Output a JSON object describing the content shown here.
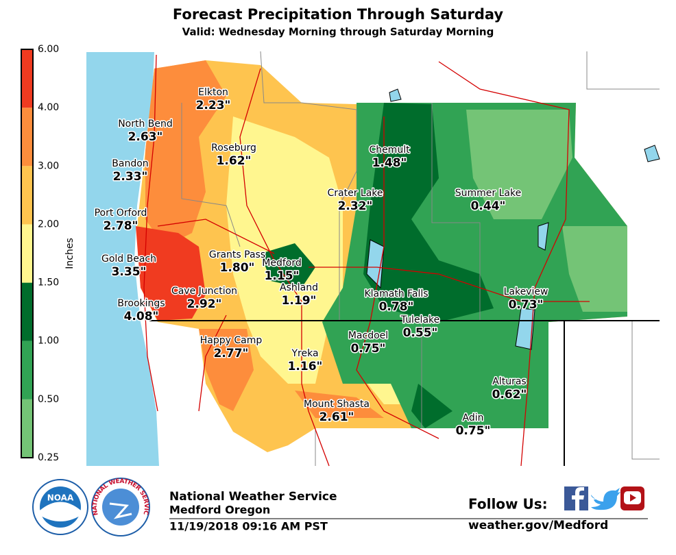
{
  "header": {
    "title": "Forecast Precipitation Through Saturday",
    "subtitle": "Valid: Wednesday Morning through Saturday Morning"
  },
  "legend": {
    "label": "Inches",
    "ticks": [
      "0.25",
      "0.50",
      "1.00",
      "1.50",
      "2.00",
      "3.00",
      "4.00",
      "6.00"
    ],
    "colors": [
      "#74c476",
      "#31a354",
      "#006d2c",
      "#fff68f",
      "#fec44f",
      "#fd8d3c",
      "#f03b20"
    ]
  },
  "locations": [
    {
      "name": "Elkton",
      "amount": "2.23\""
    },
    {
      "name": "North Bend",
      "amount": "2.63\""
    },
    {
      "name": "Roseburg",
      "amount": "1.62\""
    },
    {
      "name": "Bandon",
      "amount": "2.33\""
    },
    {
      "name": "Chemult",
      "amount": "1.48\""
    },
    {
      "name": "Crater Lake",
      "amount": "2.32\""
    },
    {
      "name": "Summer Lake",
      "amount": "0.44\""
    },
    {
      "name": "Port Orford",
      "amount": "2.78\""
    },
    {
      "name": "Gold Beach",
      "amount": "3.35\""
    },
    {
      "name": "Grants Pass",
      "amount": "1.80\""
    },
    {
      "name": "Medford",
      "amount": "1.15\""
    },
    {
      "name": "Ashland",
      "amount": "1.19\""
    },
    {
      "name": "Cave Junction",
      "amount": "2.92\""
    },
    {
      "name": "Brookings",
      "amount": "4.08\""
    },
    {
      "name": "Klamath Falls",
      "amount": "0.78\""
    },
    {
      "name": "Lakeview",
      "amount": "0.73\""
    },
    {
      "name": "Tulelake",
      "amount": "0.55\""
    },
    {
      "name": "Macdoel",
      "amount": "0.75\""
    },
    {
      "name": "Happy Camp",
      "amount": "2.77\""
    },
    {
      "name": "Yreka",
      "amount": "1.16\""
    },
    {
      "name": "Alturas",
      "amount": "0.62\""
    },
    {
      "name": "Mount Shasta",
      "amount": "2.61\""
    },
    {
      "name": "Adin",
      "amount": "0.75\""
    }
  ],
  "footer": {
    "agency": "National Weather Service",
    "office": "Medford Oregon",
    "timestamp": "11/19/2018 09:16 AM PST",
    "follow": "Follow Us:",
    "website": "weather.gov/Medford",
    "noaa": "NOAA",
    "nws": "NATIONAL WEATHER SERVICE"
  }
}
